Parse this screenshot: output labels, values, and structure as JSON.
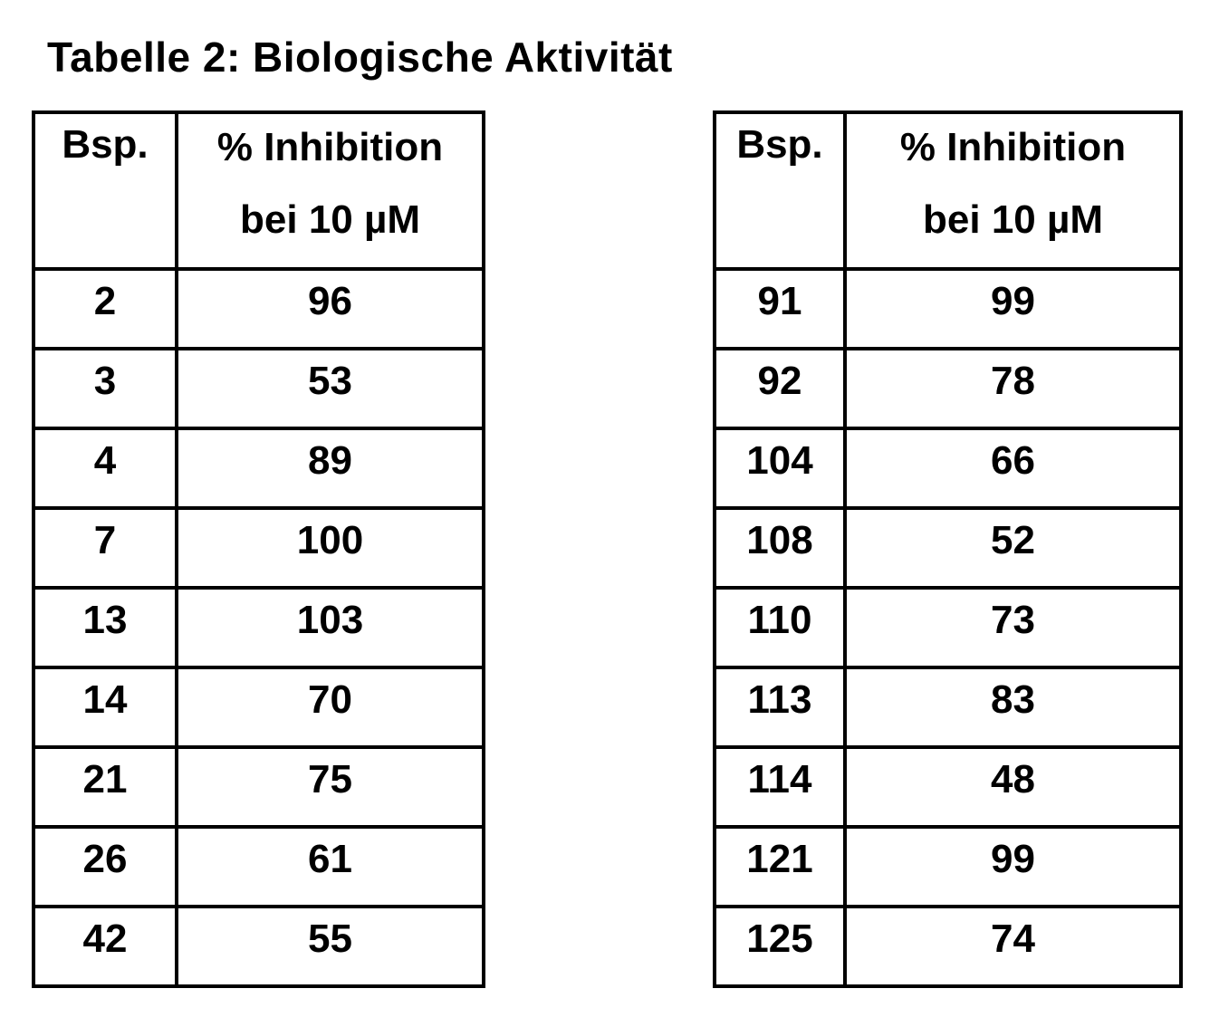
{
  "title": "Tabelle 2: Biologische Aktivität",
  "tables": [
    {
      "id": "left",
      "header": {
        "bsp": "Bsp.",
        "inhibition_line1": "% Inhibition",
        "inhibition_line2": "bei 10 µM"
      },
      "rows": [
        {
          "bsp": "2",
          "inhibition": "96"
        },
        {
          "bsp": "3",
          "inhibition": "53"
        },
        {
          "bsp": "4",
          "inhibition": "89"
        },
        {
          "bsp": "7",
          "inhibition": "100"
        },
        {
          "bsp": "13",
          "inhibition": "103"
        },
        {
          "bsp": "14",
          "inhibition": "70"
        },
        {
          "bsp": "21",
          "inhibition": "75"
        },
        {
          "bsp": "26",
          "inhibition": "61"
        },
        {
          "bsp": "42",
          "inhibition": "55"
        }
      ]
    },
    {
      "id": "right",
      "header": {
        "bsp": "Bsp.",
        "inhibition_line1": "% Inhibition",
        "inhibition_line2": "bei 10 µM"
      },
      "rows": [
        {
          "bsp": "91",
          "inhibition": "99"
        },
        {
          "bsp": "92",
          "inhibition": "78"
        },
        {
          "bsp": "104",
          "inhibition": "66"
        },
        {
          "bsp": "108",
          "inhibition": "52"
        },
        {
          "bsp": "110",
          "inhibition": "73"
        },
        {
          "bsp": "113",
          "inhibition": "83"
        },
        {
          "bsp": "114",
          "inhibition": "48"
        },
        {
          "bsp": "121",
          "inhibition": "99"
        },
        {
          "bsp": "125",
          "inhibition": "74"
        }
      ]
    }
  ]
}
